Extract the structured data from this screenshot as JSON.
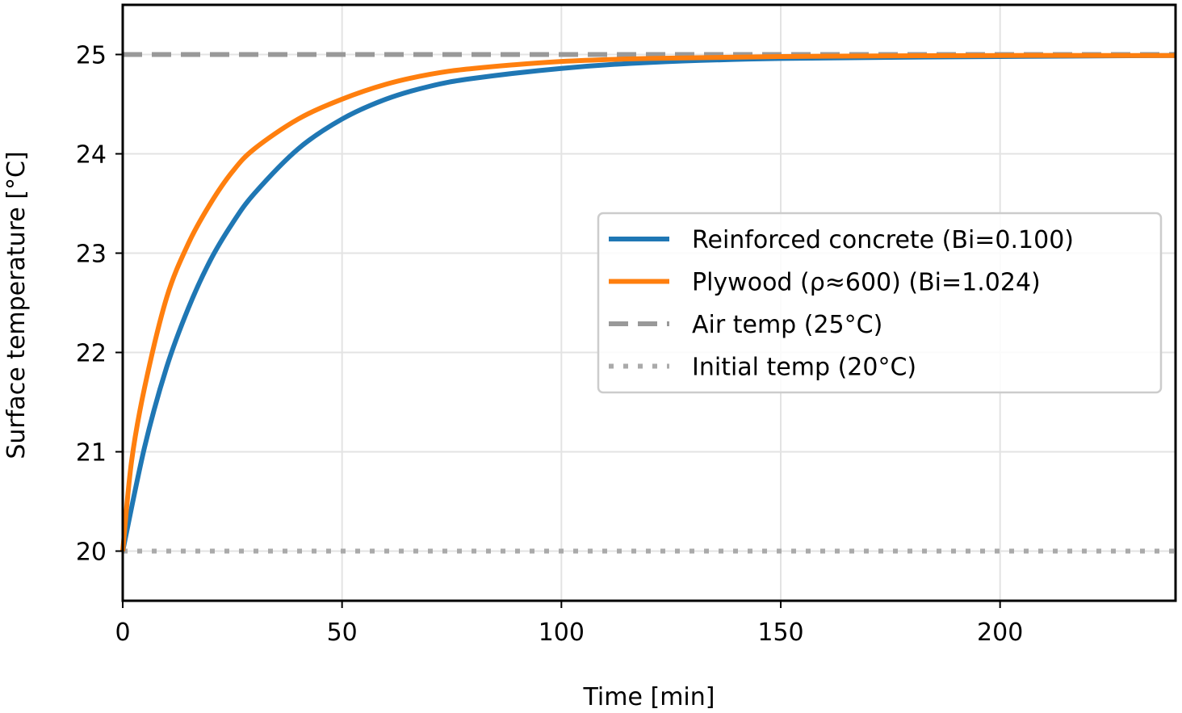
{
  "chart_data": {
    "type": "line",
    "title": "",
    "xlabel": "Time [min]",
    "ylabel": "Surface temperature [°C]",
    "xlim": [
      0,
      240
    ],
    "ylim": [
      19.5,
      25.5
    ],
    "xticks": [
      0,
      50,
      100,
      150,
      200
    ],
    "xtick_labels": [
      "0",
      "50",
      "100",
      "150",
      "200"
    ],
    "yticks": [
      20,
      21,
      22,
      23,
      24,
      25
    ],
    "ytick_labels": [
      "20",
      "21",
      "22",
      "23",
      "24",
      "25"
    ],
    "grid": true,
    "legend_position": "center-right",
    "series": [
      {
        "name": "Reinforced concrete (Bi=0.100)",
        "color": "#1f77b4",
        "style": "solid",
        "x": [
          0,
          5,
          10,
          15,
          20,
          25,
          30,
          40,
          50,
          60,
          70,
          80,
          100,
          120,
          150,
          200,
          240
        ],
        "y": [
          20.0,
          21.05,
          21.85,
          22.45,
          22.93,
          23.3,
          23.6,
          24.05,
          24.35,
          24.55,
          24.68,
          24.76,
          24.86,
          24.92,
          24.96,
          24.98,
          24.99
        ]
      },
      {
        "name": "Plywood (ρ≈600) (Bi=1.024)",
        "color": "#ff7f0e",
        "style": "solid",
        "x": [
          0,
          2,
          5,
          10,
          15,
          20,
          25,
          30,
          40,
          50,
          60,
          70,
          80,
          100,
          120,
          150,
          200,
          240
        ],
        "y": [
          20.0,
          20.9,
          21.65,
          22.55,
          23.1,
          23.5,
          23.82,
          24.05,
          24.35,
          24.55,
          24.7,
          24.8,
          24.86,
          24.93,
          24.96,
          24.98,
          24.99,
          24.99
        ]
      },
      {
        "name": "Air temp (25°C)",
        "color": "#999999",
        "style": "dashed",
        "x": [
          0,
          240
        ],
        "y": [
          25,
          25
        ]
      },
      {
        "name": "Initial temp (20°C)",
        "color": "#aaaaaa",
        "style": "dotted",
        "x": [
          0,
          240
        ],
        "y": [
          20,
          20
        ]
      }
    ]
  }
}
